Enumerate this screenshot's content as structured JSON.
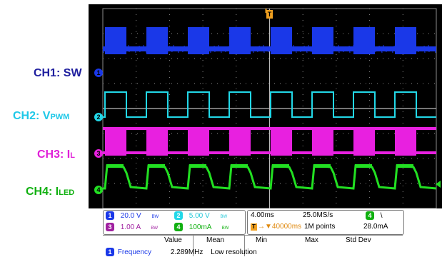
{
  "channel_labels": [
    {
      "main": "CH1: SW",
      "sub": "",
      "color": "#1e1e9e"
    },
    {
      "main": "CH2: V",
      "sub": "PWM",
      "color": "#1ec8e8"
    },
    {
      "main": "CH3: I",
      "sub": "L",
      "color": "#e020d8"
    },
    {
      "main": "CH4: I",
      "sub": "LED",
      "color": "#10b010"
    }
  ],
  "trigger_marker": "T",
  "channel_markers": [
    "1",
    "2",
    "3",
    "4"
  ],
  "settings": {
    "ch1": {
      "badge": "1",
      "scale": "20.0 V",
      "bw": "BW",
      "color": "#1a38e8"
    },
    "ch2": {
      "badge": "2",
      "scale": "5.00 V",
      "bw": "BW",
      "color": "#22d8e8"
    },
    "ch3": {
      "badge": "3",
      "scale": "1.00 A",
      "bw": "BW",
      "color": "#a020a0"
    },
    "ch4": {
      "badge": "4",
      "scale": "100mA",
      "bw": "BW",
      "color": "#10b010"
    }
  },
  "timebase": {
    "time_div": "4.00ms",
    "sample_rate": "25.0MS/s",
    "trigger_ch": "4",
    "trigger_slope": "\\",
    "trigger_pos": "40000ms",
    "record_length": "1M points",
    "trigger_level": "28.0mA"
  },
  "measurement": {
    "headers": [
      "Value",
      "Mean",
      "Min",
      "Max",
      "Std Dev"
    ],
    "row_badge": "1",
    "row_label": "Frequency",
    "row_value": "2.289MHz",
    "row_note": "Low resolution"
  },
  "colors": {
    "ch1": "#1a38e8",
    "ch2": "#22d8e8",
    "ch3": "#e820e0",
    "ch4": "#22e022",
    "trigger": "#f0a020",
    "grid": "#8a8a8a"
  }
}
